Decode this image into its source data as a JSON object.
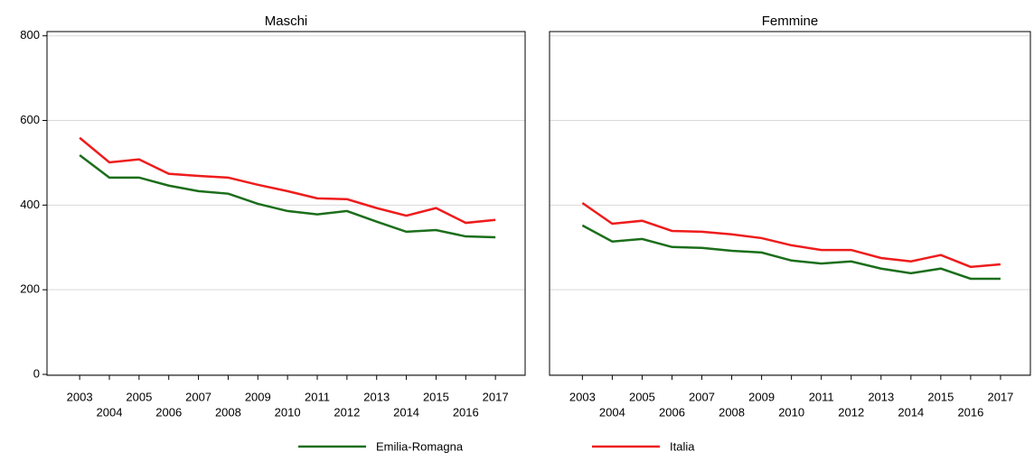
{
  "chart_data": [
    {
      "type": "line",
      "title": "Maschi",
      "x": [
        2003,
        2004,
        2005,
        2006,
        2007,
        2008,
        2009,
        2010,
        2011,
        2012,
        2013,
        2014,
        2015,
        2016,
        2017
      ],
      "xlim": [
        2001.9,
        2018.0
      ],
      "ylim": [
        0,
        810
      ],
      "yticks": [
        0,
        200,
        400,
        600,
        800
      ],
      "grid": true,
      "series": [
        {
          "name": "Emilia-Romagna",
          "color": "#1b6e1b",
          "values": [
            518,
            465,
            465,
            446,
            433,
            427,
            403,
            386,
            378,
            386,
            361,
            337,
            341,
            326,
            324
          ]
        },
        {
          "name": "Italia",
          "color": "#ee1c1c",
          "values": [
            559,
            501,
            508,
            474,
            469,
            465,
            448,
            433,
            416,
            414,
            393,
            375,
            393,
            358,
            365
          ]
        }
      ]
    },
    {
      "type": "line",
      "title": "Femmine",
      "x": [
        2003,
        2004,
        2005,
        2006,
        2007,
        2008,
        2009,
        2010,
        2011,
        2012,
        2013,
        2014,
        2015,
        2016,
        2017
      ],
      "xlim": [
        2001.9,
        2018.0
      ],
      "ylim": [
        0,
        810
      ],
      "yticks": [
        0,
        200,
        400,
        600,
        800
      ],
      "grid": true,
      "series": [
        {
          "color": "#1b6e1b",
          "values": [
            352,
            314,
            320,
            301,
            299,
            292,
            288,
            269,
            262,
            267,
            250,
            239,
            250,
            226,
            226
          ]
        },
        {
          "color": "#ee1c1c",
          "values": [
            405,
            356,
            363,
            339,
            337,
            331,
            322,
            305,
            294,
            294,
            275,
            267,
            282,
            254,
            260
          ]
        }
      ]
    }
  ]
}
